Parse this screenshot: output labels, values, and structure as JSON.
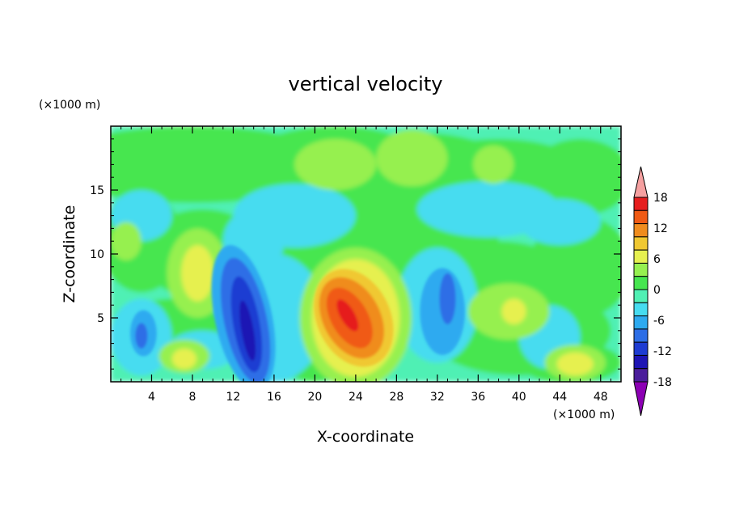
{
  "chart_data": {
    "type": "heatmap",
    "title": "vertical velocity",
    "xlabel": "X-coordinate",
    "ylabel": "Z-coordinate",
    "x_unit": "(×1000 m)",
    "y_unit": "(×1000 m)",
    "xlim": [
      0,
      50
    ],
    "ylim": [
      0,
      20
    ],
    "x_ticks": [
      4,
      8,
      12,
      16,
      20,
      24,
      28,
      32,
      36,
      40,
      44,
      48
    ],
    "y_ticks": [
      5,
      10,
      15
    ],
    "colorbar": {
      "ticks": [
        18,
        12,
        6,
        0,
        -6,
        -12,
        -18
      ],
      "levels": [
        -21,
        -18,
        -15,
        -12,
        -9,
        -6,
        -3,
        0,
        3,
        6,
        9,
        12,
        15,
        18,
        21
      ],
      "colors": [
        "#8c00b4",
        "#4b1e9b",
        "#1e14b4",
        "#1e3cd2",
        "#2d6ee6",
        "#2daaf0",
        "#46dcf0",
        "#50f0b4",
        "#46e650",
        "#96f050",
        "#e6f050",
        "#f0c832",
        "#f08c1e",
        "#f05a14",
        "#e61e1e",
        "#f5a0a0"
      ]
    },
    "features": [
      {
        "x": 13.0,
        "z": 4.5,
        "value": -15
      },
      {
        "x": 23.5,
        "z": 4.5,
        "value": 15
      },
      {
        "x": 3.2,
        "z": 3.8,
        "value": -9
      },
      {
        "x": 32.5,
        "z": 6.0,
        "value": -6
      },
      {
        "x": 8.5,
        "z": 8.5,
        "value": 6
      },
      {
        "x": 45.5,
        "z": 1.5,
        "value": 6
      },
      {
        "x": 39.0,
        "z": 5.5,
        "value": 4
      },
      {
        "x": 7.2,
        "z": 2.0,
        "value": 4
      },
      {
        "x": 18.0,
        "z": 13.0,
        "value": -5
      },
      {
        "x": 37.0,
        "z": 13.5,
        "value": -4
      },
      {
        "x": 22.0,
        "z": 17.0,
        "value": 3
      },
      {
        "x": 30.0,
        "z": 17.5,
        "value": 3
      },
      {
        "x": 37.5,
        "z": 17.0,
        "value": 3
      }
    ]
  }
}
